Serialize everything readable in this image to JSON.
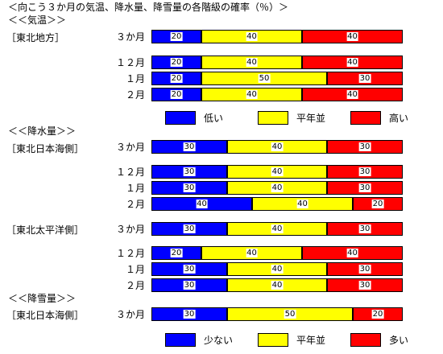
{
  "title": "＜向こう３か月の気温、降水量、降雪量の各階級の確率（％）＞",
  "colors": {
    "low": "#0000ff",
    "normal": "#ffff00",
    "high": "#ff0000"
  },
  "legends": [
    {
      "labels": [
        "低い",
        "平年並",
        "高い"
      ]
    },
    {
      "labels": [
        "少ない",
        "平年並",
        "多い"
      ]
    }
  ],
  "chart_data": {
    "type": "bar",
    "stacked": true,
    "unit": "%",
    "xlim": [
      0,
      100
    ],
    "series_names": [
      "低い/少ない",
      "平年並",
      "高い/多い"
    ],
    "sections": [
      {
        "header": "＜＜気温＞＞",
        "groups": [
          {
            "region": "［東北地方］",
            "rows": [
              {
                "period": "３か月",
                "values": [
                  20,
                  40,
                  40
                ]
              },
              {
                "period": "１２月",
                "values": [
                  20,
                  40,
                  40
                ]
              },
              {
                "period": "１月",
                "values": [
                  20,
                  50,
                  30
                ]
              },
              {
                "period": "２月",
                "values": [
                  20,
                  40,
                  40
                ]
              }
            ]
          }
        ]
      },
      {
        "header": "＜＜降水量＞＞",
        "groups": [
          {
            "region": "［東北日本海側］",
            "rows": [
              {
                "period": "３か月",
                "values": [
                  30,
                  40,
                  30
                ]
              },
              {
                "period": "１２月",
                "values": [
                  30,
                  40,
                  30
                ]
              },
              {
                "period": "１月",
                "values": [
                  30,
                  40,
                  30
                ]
              },
              {
                "period": "２月",
                "values": [
                  40,
                  40,
                  20
                ]
              }
            ]
          },
          {
            "region": "［東北太平洋側］",
            "rows": [
              {
                "period": "３か月",
                "values": [
                  30,
                  40,
                  30
                ]
              },
              {
                "period": "１２月",
                "values": [
                  20,
                  40,
                  40
                ]
              },
              {
                "period": "１月",
                "values": [
                  30,
                  40,
                  30
                ]
              },
              {
                "period": "２月",
                "values": [
                  30,
                  40,
                  30
                ]
              }
            ]
          }
        ]
      },
      {
        "header": "＜＜降雪量＞＞",
        "groups": [
          {
            "region": "［東北日本海側］",
            "rows": [
              {
                "period": "３か月",
                "values": [
                  30,
                  50,
                  20
                ]
              }
            ]
          }
        ]
      }
    ]
  }
}
